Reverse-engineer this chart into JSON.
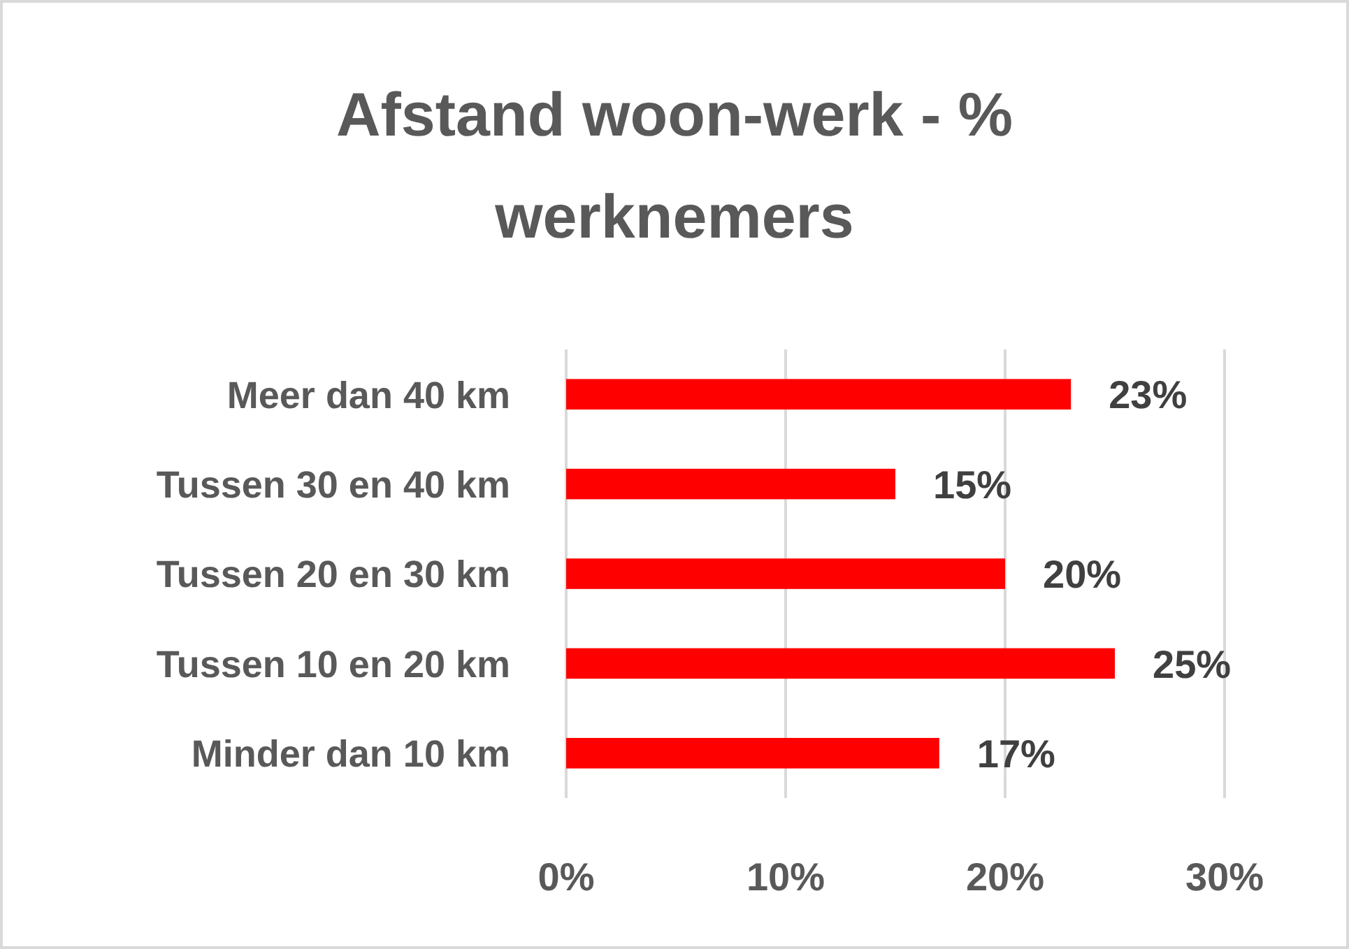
{
  "chart_data": {
    "type": "bar",
    "orientation": "horizontal",
    "title": "Afstand woon-werk - % werknemers",
    "categories": [
      "Meer dan 40 km",
      "Tussen 30 en 40 km",
      "Tussen 20 en 30 km",
      "Tussen 10 en 20 km",
      "Minder dan 10 km"
    ],
    "values": [
      23,
      15,
      20,
      25,
      17
    ],
    "color": "#ff0000",
    "value_labels": [
      "23%",
      "15%",
      "20%",
      "25%",
      "17%"
    ],
    "xlim": [
      0,
      30
    ],
    "xticks": [
      {
        "value": 0,
        "label": "0%"
      },
      {
        "value": 10,
        "label": "10%"
      },
      {
        "value": 20,
        "label": "20%"
      },
      {
        "value": 30,
        "label": "30%"
      }
    ],
    "grid": "x"
  }
}
